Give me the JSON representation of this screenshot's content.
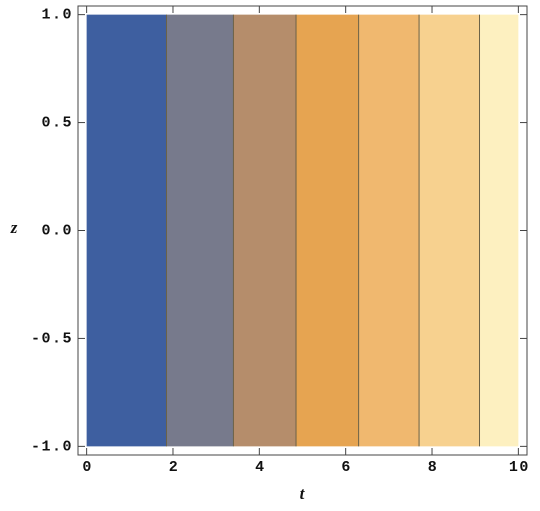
{
  "chart_data": {
    "type": "contour",
    "x_label": "t",
    "y_label": "z",
    "x_range": [
      0,
      10
    ],
    "y_range": [
      -1,
      1
    ],
    "boundaries": [
      1.85,
      3.4,
      4.85,
      6.3,
      7.7,
      9.1
    ],
    "colors": [
      "#3e5fa0",
      "#777a8c",
      "#b58d6b",
      "#e6a451",
      "#f0b86f",
      "#f7d18f",
      "#fdf0c0"
    ],
    "contour_line_color": "#6b6248",
    "xlim": [
      -0.2,
      10.2
    ],
    "ylim": [
      -1.04,
      1.04
    ],
    "xticks": [
      0,
      2,
      4,
      6,
      8,
      10
    ],
    "yticks": [
      {
        "value": 1,
        "label": "1.0"
      },
      0.5,
      {
        "value": 0,
        "label": "0.0"
      },
      -0.5,
      {
        "value": -1,
        "label": "-1.0"
      }
    ]
  }
}
